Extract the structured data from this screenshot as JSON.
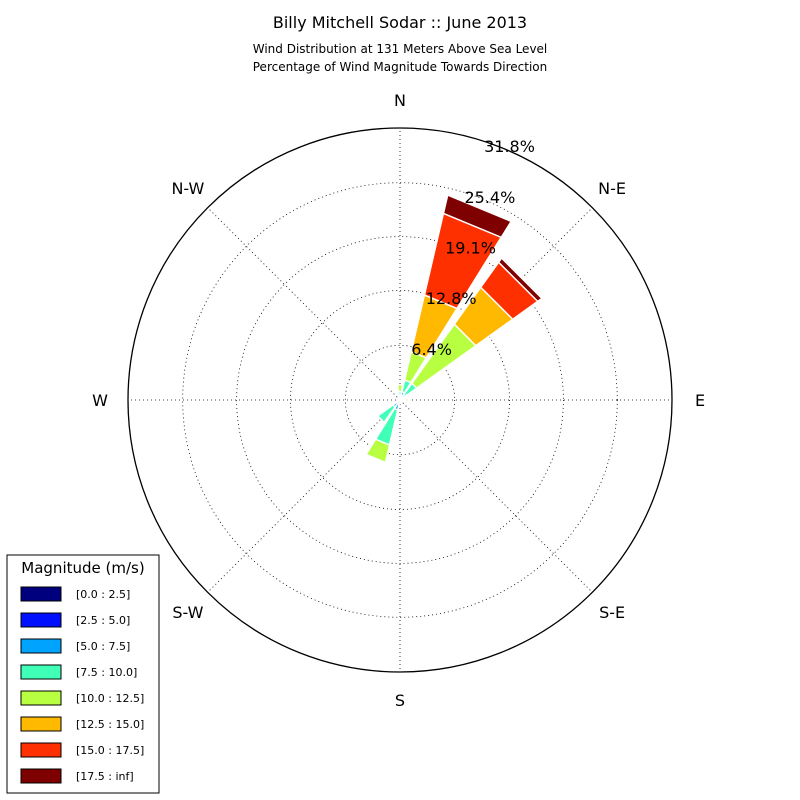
{
  "title": "Billy Mitchell Sodar :: June 2013",
  "subtitle_line1": "Wind Distribution at 131 Meters Above Sea Level",
  "subtitle_line2": "Percentage of Wind Magnitude Towards Direction",
  "chart_data": {
    "type": "windrose",
    "directions": [
      "N",
      "NNE",
      "NE",
      "ENE",
      "E",
      "ESE",
      "SE",
      "SSE",
      "S",
      "SSW",
      "SW",
      "WSW",
      "W",
      "WNW",
      "NW",
      "NNW"
    ],
    "direction_labels": [
      {
        "label": "N",
        "angle_deg": 0
      },
      {
        "label": "N-E",
        "angle_deg": 45
      },
      {
        "label": "E",
        "angle_deg": 90
      },
      {
        "label": "S-E",
        "angle_deg": 135
      },
      {
        "label": "S",
        "angle_deg": 180
      },
      {
        "label": "S-W",
        "angle_deg": 225
      },
      {
        "label": "W",
        "angle_deg": 270
      },
      {
        "label": "N-W",
        "angle_deg": 315
      }
    ],
    "radial_ticks": [
      {
        "value": 6.4,
        "label": "6.4%"
      },
      {
        "value": 12.8,
        "label": "12.8%"
      },
      {
        "value": 19.1,
        "label": "19.1%"
      },
      {
        "value": 25.4,
        "label": "25.4%"
      },
      {
        "value": 31.8,
        "label": "31.8%"
      }
    ],
    "rmax": 31.8,
    "legend": {
      "title": "Magnitude (m/s)",
      "placement": "lower-left"
    },
    "bins": [
      {
        "label": "[0.0 : 2.5]",
        "color": "#00007f"
      },
      {
        "label": "[2.5 : 5.0]",
        "color": "#0010ff"
      },
      {
        "label": "[5.0 : 7.5]",
        "color": "#00a4ff"
      },
      {
        "label": "[7.5 : 10.0]",
        "color": "#40ffb7"
      },
      {
        "label": "[10.0 : 12.5]",
        "color": "#b7ff40"
      },
      {
        "label": "[12.5 : 15.0]",
        "color": "#ffb900"
      },
      {
        "label": "[15.0 : 17.5]",
        "color": "#ff3000"
      },
      {
        "label": "[17.5 : inf]",
        "color": "#7f0000"
      }
    ],
    "cumulative_percent": [
      [
        0.0,
        0.2,
        0.5,
        1.0,
        1.8,
        1.8,
        1.8,
        1.8
      ],
      [
        0.0,
        0.4,
        1.0,
        2.4,
        5.8,
        12.6,
        22.4,
        24.6
      ],
      [
        0.0,
        0.3,
        0.8,
        2.4,
        10.9,
        16.2,
        19.8,
        20.4
      ],
      [
        0.0,
        0.3,
        0.6,
        0.8,
        0.8,
        0.8,
        0.8,
        0.8
      ],
      [
        0.0,
        0.2,
        0.4,
        0.6,
        1.0,
        1.0,
        1.0,
        1.0
      ],
      [
        0.0,
        0.1,
        0.2,
        0.2,
        0.2,
        0.2,
        0.2,
        0.2
      ],
      [
        0.0,
        0.1,
        0.2,
        0.3,
        0.3,
        0.3,
        0.3,
        0.3
      ],
      [
        0.0,
        0.1,
        0.2,
        0.3,
        0.3,
        0.3,
        0.3,
        0.3
      ],
      [
        0.0,
        0.1,
        0.2,
        0.3,
        0.3,
        0.3,
        0.3,
        0.3
      ],
      [
        0.0,
        0.4,
        1.2,
        5.4,
        7.5,
        7.5,
        7.5,
        7.5
      ],
      [
        0.0,
        0.4,
        1.0,
        3.2,
        3.2,
        3.2,
        3.2,
        3.2
      ],
      [
        0.0,
        0.1,
        0.2,
        0.3,
        0.3,
        0.3,
        0.3,
        0.3
      ],
      [
        0.0,
        0.1,
        0.1,
        0.1,
        0.1,
        0.1,
        0.1,
        0.1
      ],
      [
        0.0,
        0.1,
        0.1,
        0.1,
        0.1,
        0.1,
        0.1,
        0.1
      ],
      [
        0.0,
        0.1,
        0.2,
        0.3,
        0.3,
        0.3,
        0.3,
        0.3
      ],
      [
        0.0,
        0.1,
        0.1,
        0.1,
        0.1,
        0.1,
        0.1,
        0.1
      ]
    ],
    "grid": true
  }
}
